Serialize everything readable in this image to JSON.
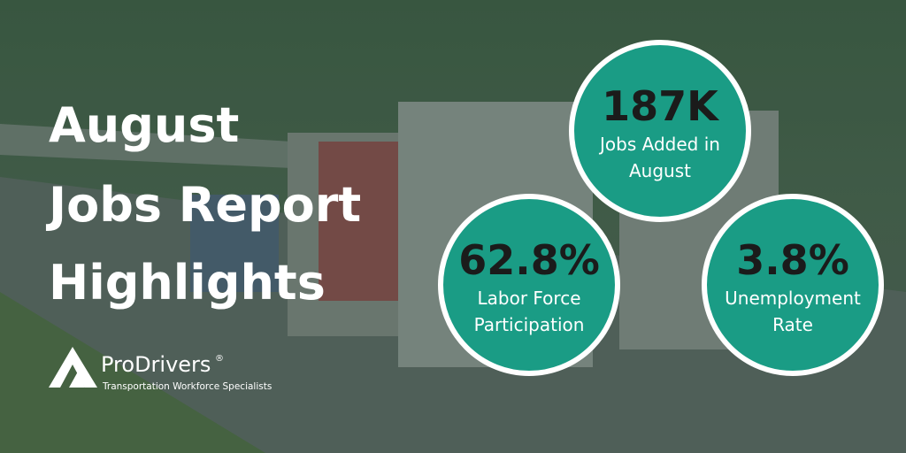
{
  "title": {
    "lines": [
      "August",
      "Jobs Report",
      "Highlights"
    ]
  },
  "stats": [
    {
      "value": "187K",
      "label_lines": [
        "Jobs Added in",
        "August"
      ]
    },
    {
      "value": "62.8%",
      "label_lines": [
        "Labor Force",
        "Participation"
      ]
    },
    {
      "value": "3.8%",
      "label_lines": [
        "Unemployment",
        "Rate"
      ]
    }
  ],
  "logo": {
    "brand": "ProDrivers",
    "registered": "®",
    "tagline": "Transportation Workforce Specialists"
  }
}
